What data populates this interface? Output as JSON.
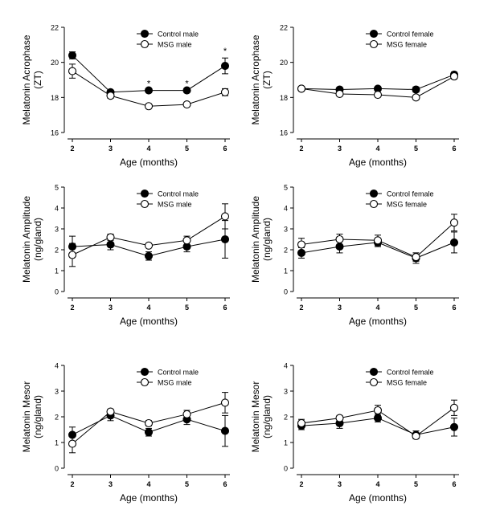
{
  "chart_data": [
    {
      "type": "line",
      "panel": "acrophase-male",
      "xlabel": "Age (months)",
      "ylabel": [
        "Melatonin Acrophase",
        "(ZT)"
      ],
      "categories": [
        "2",
        "3",
        "4",
        "5",
        "6"
      ],
      "ylim": [
        16,
        22
      ],
      "yticks": [
        "16",
        "18",
        "20",
        "22"
      ],
      "grid": false,
      "legend": "top-right",
      "series": [
        {
          "name": "Control male",
          "marker": "filled-circle",
          "values": [
            20.4,
            18.3,
            18.4,
            18.4,
            19.8
          ],
          "errors": [
            0.2,
            0.12,
            0.12,
            0.12,
            0.45
          ]
        },
        {
          "name": "MSG male",
          "marker": "open-circle",
          "values": [
            19.5,
            18.1,
            17.5,
            17.6,
            18.3
          ],
          "errors": [
            0.4,
            0.15,
            0.1,
            0.1,
            0.2
          ]
        }
      ],
      "annotations": [
        {
          "x": "4",
          "y": 18.4,
          "text": "*"
        },
        {
          "x": "5",
          "y": 18.4,
          "text": "*"
        },
        {
          "x": "6",
          "y": 20.25,
          "text": "*"
        }
      ]
    },
    {
      "type": "line",
      "panel": "acrophase-female",
      "xlabel": "Age (months)",
      "ylabel": [
        "Melatonin Acrophase",
        "(ZT)"
      ],
      "categories": [
        "2",
        "3",
        "4",
        "5",
        "6"
      ],
      "ylim": [
        16,
        22
      ],
      "yticks": [
        "16",
        "18",
        "20",
        "22"
      ],
      "grid": false,
      "legend": "top-right",
      "series": [
        {
          "name": "Control female",
          "marker": "filled-circle",
          "values": [
            18.5,
            18.45,
            18.5,
            18.45,
            19.3
          ],
          "errors": [
            0.1,
            0.1,
            0.1,
            0.15,
            0.15
          ]
        },
        {
          "name": "MSG female",
          "marker": "open-circle",
          "values": [
            18.5,
            18.2,
            18.15,
            18.0,
            19.2
          ],
          "errors": [
            0.1,
            0.1,
            0.1,
            0.1,
            0.15
          ]
        }
      ],
      "annotations": []
    },
    {
      "type": "line",
      "panel": "amplitude-male",
      "xlabel": "Age (months)",
      "ylabel": [
        "Melatonin Amplitude",
        "(ng/gland)"
      ],
      "categories": [
        "2",
        "3",
        "4",
        "5",
        "6"
      ],
      "ylim": [
        0,
        5
      ],
      "yticks": [
        "0",
        "1",
        "2",
        "3",
        "4",
        "5"
      ],
      "grid": false,
      "legend": "top-right",
      "series": [
        {
          "name": "Control male",
          "marker": "filled-circle",
          "values": [
            2.15,
            2.25,
            1.7,
            2.15,
            2.5
          ],
          "errors": [
            0.5,
            0.25,
            0.2,
            0.25,
            0.9
          ]
        },
        {
          "name": "MSG male",
          "marker": "open-circle",
          "values": [
            1.75,
            2.6,
            2.2,
            2.45,
            3.6
          ],
          "errors": [
            0.55,
            0.15,
            0.1,
            0.2,
            0.6
          ]
        }
      ],
      "annotations": []
    },
    {
      "type": "line",
      "panel": "amplitude-female",
      "xlabel": "Age (months)",
      "ylabel": [
        "Melatonin Amplitude",
        "(ng/gland)"
      ],
      "categories": [
        "2",
        "3",
        "4",
        "5",
        "6"
      ],
      "ylim": [
        0,
        5
      ],
      "yticks": [
        "0",
        "1",
        "2",
        "3",
        "4",
        "5"
      ],
      "grid": false,
      "legend": "top-right",
      "series": [
        {
          "name": "Control female",
          "marker": "filled-circle",
          "values": [
            1.85,
            2.15,
            2.35,
            1.6,
            2.35
          ],
          "errors": [
            0.25,
            0.3,
            0.2,
            0.25,
            0.5
          ]
        },
        {
          "name": "MSG female",
          "marker": "open-circle",
          "values": [
            2.25,
            2.5,
            2.45,
            1.65,
            3.3
          ],
          "errors": [
            0.3,
            0.25,
            0.25,
            0.2,
            0.4
          ]
        }
      ],
      "annotations": []
    },
    {
      "type": "line",
      "panel": "mesor-male",
      "xlabel": "Age (months)",
      "ylabel": [
        "Melatonin Mesor",
        "(ng/gland)"
      ],
      "categories": [
        "2",
        "3",
        "4",
        "5",
        "6"
      ],
      "ylim": [
        0,
        4
      ],
      "yticks": [
        "0",
        "1",
        "2",
        "3",
        "4"
      ],
      "grid": false,
      "legend": "top-right",
      "series": [
        {
          "name": "Control male",
          "marker": "filled-circle",
          "values": [
            1.3,
            2.05,
            1.4,
            1.9,
            1.45
          ],
          "errors": [
            0.3,
            0.2,
            0.15,
            0.2,
            0.6
          ]
        },
        {
          "name": "MSG male",
          "marker": "open-circle",
          "values": [
            0.95,
            2.2,
            1.75,
            2.1,
            2.55
          ],
          "errors": [
            0.35,
            0.1,
            0.1,
            0.15,
            0.4
          ]
        }
      ],
      "annotations": []
    },
    {
      "type": "line",
      "panel": "mesor-female",
      "xlabel": "Age (months)",
      "ylabel": [
        "Melatonin Mesor",
        "(ng/gland)"
      ],
      "categories": [
        "2",
        "3",
        "4",
        "5",
        "6"
      ],
      "ylim": [
        0,
        4
      ],
      "yticks": [
        "0",
        "1",
        "2",
        "3",
        "4"
      ],
      "grid": false,
      "legend": "top-right",
      "series": [
        {
          "name": "Control female",
          "marker": "filled-circle",
          "values": [
            1.65,
            1.75,
            1.95,
            1.3,
            1.6
          ],
          "errors": [
            0.15,
            0.2,
            0.15,
            0.15,
            0.35
          ]
        },
        {
          "name": "MSG female",
          "marker": "open-circle",
          "values": [
            1.75,
            1.95,
            2.25,
            1.25,
            2.35
          ],
          "errors": [
            0.15,
            0.1,
            0.2,
            0.1,
            0.3
          ]
        }
      ],
      "annotations": []
    }
  ]
}
